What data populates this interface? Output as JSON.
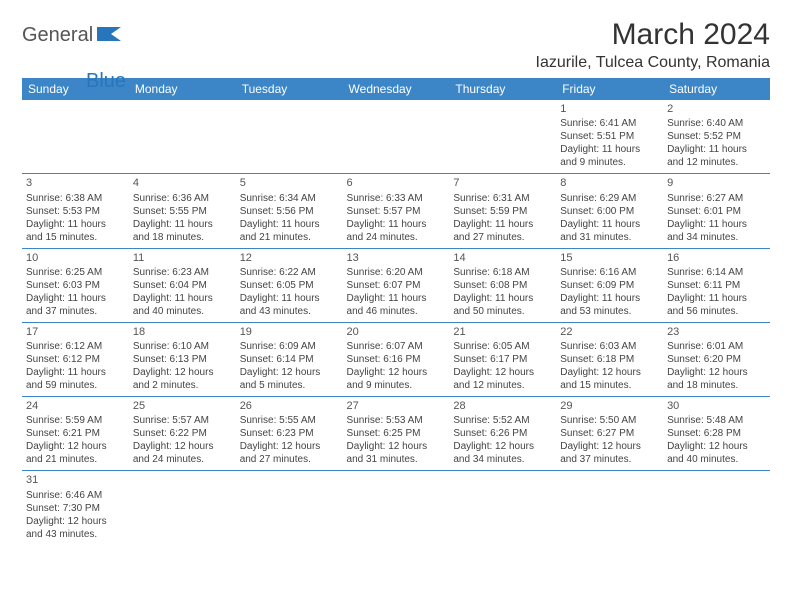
{
  "logo": {
    "general": "General",
    "blue": "Blue"
  },
  "title": "March 2024",
  "location": "Iazurile, Tulcea County, Romania",
  "colors": {
    "header_bg": "#3c85c6",
    "header_text": "#ffffff",
    "border": "#3c85c6",
    "body_text": "#444444",
    "title_text": "#333333",
    "logo_gray": "#555555",
    "logo_blue": "#2776bb",
    "background": "#ffffff"
  },
  "day_headers": [
    "Sunday",
    "Monday",
    "Tuesday",
    "Wednesday",
    "Thursday",
    "Friday",
    "Saturday"
  ],
  "weeks": [
    [
      null,
      null,
      null,
      null,
      null,
      {
        "n": "1",
        "sr": "Sunrise: 6:41 AM",
        "ss": "Sunset: 5:51 PM",
        "dl": "Daylight: 11 hours and 9 minutes."
      },
      {
        "n": "2",
        "sr": "Sunrise: 6:40 AM",
        "ss": "Sunset: 5:52 PM",
        "dl": "Daylight: 11 hours and 12 minutes."
      }
    ],
    [
      {
        "n": "3",
        "sr": "Sunrise: 6:38 AM",
        "ss": "Sunset: 5:53 PM",
        "dl": "Daylight: 11 hours and 15 minutes."
      },
      {
        "n": "4",
        "sr": "Sunrise: 6:36 AM",
        "ss": "Sunset: 5:55 PM",
        "dl": "Daylight: 11 hours and 18 minutes."
      },
      {
        "n": "5",
        "sr": "Sunrise: 6:34 AM",
        "ss": "Sunset: 5:56 PM",
        "dl": "Daylight: 11 hours and 21 minutes."
      },
      {
        "n": "6",
        "sr": "Sunrise: 6:33 AM",
        "ss": "Sunset: 5:57 PM",
        "dl": "Daylight: 11 hours and 24 minutes."
      },
      {
        "n": "7",
        "sr": "Sunrise: 6:31 AM",
        "ss": "Sunset: 5:59 PM",
        "dl": "Daylight: 11 hours and 27 minutes."
      },
      {
        "n": "8",
        "sr": "Sunrise: 6:29 AM",
        "ss": "Sunset: 6:00 PM",
        "dl": "Daylight: 11 hours and 31 minutes."
      },
      {
        "n": "9",
        "sr": "Sunrise: 6:27 AM",
        "ss": "Sunset: 6:01 PM",
        "dl": "Daylight: 11 hours and 34 minutes."
      }
    ],
    [
      {
        "n": "10",
        "sr": "Sunrise: 6:25 AM",
        "ss": "Sunset: 6:03 PM",
        "dl": "Daylight: 11 hours and 37 minutes."
      },
      {
        "n": "11",
        "sr": "Sunrise: 6:23 AM",
        "ss": "Sunset: 6:04 PM",
        "dl": "Daylight: 11 hours and 40 minutes."
      },
      {
        "n": "12",
        "sr": "Sunrise: 6:22 AM",
        "ss": "Sunset: 6:05 PM",
        "dl": "Daylight: 11 hours and 43 minutes."
      },
      {
        "n": "13",
        "sr": "Sunrise: 6:20 AM",
        "ss": "Sunset: 6:07 PM",
        "dl": "Daylight: 11 hours and 46 minutes."
      },
      {
        "n": "14",
        "sr": "Sunrise: 6:18 AM",
        "ss": "Sunset: 6:08 PM",
        "dl": "Daylight: 11 hours and 50 minutes."
      },
      {
        "n": "15",
        "sr": "Sunrise: 6:16 AM",
        "ss": "Sunset: 6:09 PM",
        "dl": "Daylight: 11 hours and 53 minutes."
      },
      {
        "n": "16",
        "sr": "Sunrise: 6:14 AM",
        "ss": "Sunset: 6:11 PM",
        "dl": "Daylight: 11 hours and 56 minutes."
      }
    ],
    [
      {
        "n": "17",
        "sr": "Sunrise: 6:12 AM",
        "ss": "Sunset: 6:12 PM",
        "dl": "Daylight: 11 hours and 59 minutes."
      },
      {
        "n": "18",
        "sr": "Sunrise: 6:10 AM",
        "ss": "Sunset: 6:13 PM",
        "dl": "Daylight: 12 hours and 2 minutes."
      },
      {
        "n": "19",
        "sr": "Sunrise: 6:09 AM",
        "ss": "Sunset: 6:14 PM",
        "dl": "Daylight: 12 hours and 5 minutes."
      },
      {
        "n": "20",
        "sr": "Sunrise: 6:07 AM",
        "ss": "Sunset: 6:16 PM",
        "dl": "Daylight: 12 hours and 9 minutes."
      },
      {
        "n": "21",
        "sr": "Sunrise: 6:05 AM",
        "ss": "Sunset: 6:17 PM",
        "dl": "Daylight: 12 hours and 12 minutes."
      },
      {
        "n": "22",
        "sr": "Sunrise: 6:03 AM",
        "ss": "Sunset: 6:18 PM",
        "dl": "Daylight: 12 hours and 15 minutes."
      },
      {
        "n": "23",
        "sr": "Sunrise: 6:01 AM",
        "ss": "Sunset: 6:20 PM",
        "dl": "Daylight: 12 hours and 18 minutes."
      }
    ],
    [
      {
        "n": "24",
        "sr": "Sunrise: 5:59 AM",
        "ss": "Sunset: 6:21 PM",
        "dl": "Daylight: 12 hours and 21 minutes."
      },
      {
        "n": "25",
        "sr": "Sunrise: 5:57 AM",
        "ss": "Sunset: 6:22 PM",
        "dl": "Daylight: 12 hours and 24 minutes."
      },
      {
        "n": "26",
        "sr": "Sunrise: 5:55 AM",
        "ss": "Sunset: 6:23 PM",
        "dl": "Daylight: 12 hours and 27 minutes."
      },
      {
        "n": "27",
        "sr": "Sunrise: 5:53 AM",
        "ss": "Sunset: 6:25 PM",
        "dl": "Daylight: 12 hours and 31 minutes."
      },
      {
        "n": "28",
        "sr": "Sunrise: 5:52 AM",
        "ss": "Sunset: 6:26 PM",
        "dl": "Daylight: 12 hours and 34 minutes."
      },
      {
        "n": "29",
        "sr": "Sunrise: 5:50 AM",
        "ss": "Sunset: 6:27 PM",
        "dl": "Daylight: 12 hours and 37 minutes."
      },
      {
        "n": "30",
        "sr": "Sunrise: 5:48 AM",
        "ss": "Sunset: 6:28 PM",
        "dl": "Daylight: 12 hours and 40 minutes."
      }
    ],
    [
      {
        "n": "31",
        "sr": "Sunrise: 6:46 AM",
        "ss": "Sunset: 7:30 PM",
        "dl": "Daylight: 12 hours and 43 minutes."
      },
      null,
      null,
      null,
      null,
      null,
      null
    ]
  ]
}
